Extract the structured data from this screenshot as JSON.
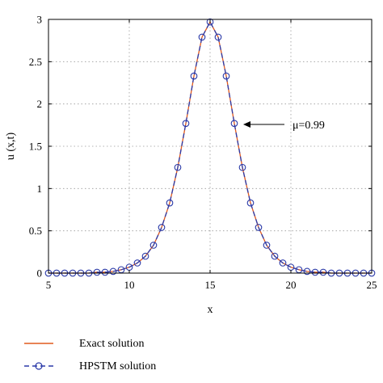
{
  "chart_data": {
    "type": "line",
    "xlabel": "x",
    "ylabel": "u (x,t)",
    "xlim": [
      5,
      25
    ],
    "ylim": [
      0,
      3
    ],
    "xticks": [
      "5",
      "10",
      "15",
      "20",
      "25"
    ],
    "yticks": [
      "0",
      "0.5",
      "1",
      "1.5",
      "2",
      "2.5",
      "3"
    ],
    "grid": true,
    "legend_position": "bottom-left-outside",
    "annotation": {
      "text": "μ=0.99",
      "arrow_to": [
        16.5,
        1.77
      ]
    },
    "series": [
      {
        "name": "Exact solution",
        "style": "solid",
        "color": "#e05a1e",
        "x": [
          5.0,
          5.5,
          6.0,
          6.5,
          7.0,
          7.5,
          8.0,
          8.5,
          9.0,
          9.5,
          10.0,
          10.5,
          11.0,
          11.5,
          12.0,
          12.5,
          13.0,
          13.5,
          14.0,
          14.5,
          15.0,
          15.5,
          16.0,
          16.5,
          17.0,
          17.5,
          18.0,
          18.5,
          19.0,
          19.5,
          20.0,
          20.5,
          21.0,
          21.5,
          22.0,
          22.5,
          23.0,
          23.5,
          24.0,
          24.5,
          25.0
        ],
        "y": [
          0.0,
          0.0,
          0.0,
          0.0,
          0.0,
          0.0,
          0.01,
          0.01,
          0.02,
          0.04,
          0.07,
          0.12,
          0.2,
          0.33,
          0.54,
          0.83,
          1.25,
          1.77,
          2.33,
          2.79,
          2.97,
          2.79,
          2.33,
          1.77,
          1.25,
          0.83,
          0.54,
          0.33,
          0.2,
          0.12,
          0.07,
          0.04,
          0.02,
          0.01,
          0.01,
          0.0,
          0.0,
          0.0,
          0.0,
          0.0,
          0.0
        ]
      },
      {
        "name": "HPSTM solution",
        "style": "dashed-circle",
        "color": "#2b3aa8",
        "x": [
          5.0,
          5.5,
          6.0,
          6.5,
          7.0,
          7.5,
          8.0,
          8.5,
          9.0,
          9.5,
          10.0,
          10.5,
          11.0,
          11.5,
          12.0,
          12.5,
          13.0,
          13.5,
          14.0,
          14.5,
          15.0,
          15.5,
          16.0,
          16.5,
          17.0,
          17.5,
          18.0,
          18.5,
          19.0,
          19.5,
          20.0,
          20.5,
          21.0,
          21.5,
          22.0,
          22.5,
          23.0,
          23.5,
          24.0,
          24.5,
          25.0
        ],
        "y": [
          0.0,
          0.0,
          0.0,
          0.0,
          0.0,
          0.0,
          0.01,
          0.01,
          0.02,
          0.04,
          0.07,
          0.12,
          0.2,
          0.33,
          0.54,
          0.83,
          1.25,
          1.77,
          2.33,
          2.79,
          2.97,
          2.79,
          2.33,
          1.77,
          1.25,
          0.83,
          0.54,
          0.33,
          0.2,
          0.12,
          0.07,
          0.04,
          0.02,
          0.01,
          0.01,
          0.0,
          0.0,
          0.0,
          0.0,
          0.0,
          0.0
        ]
      }
    ]
  }
}
